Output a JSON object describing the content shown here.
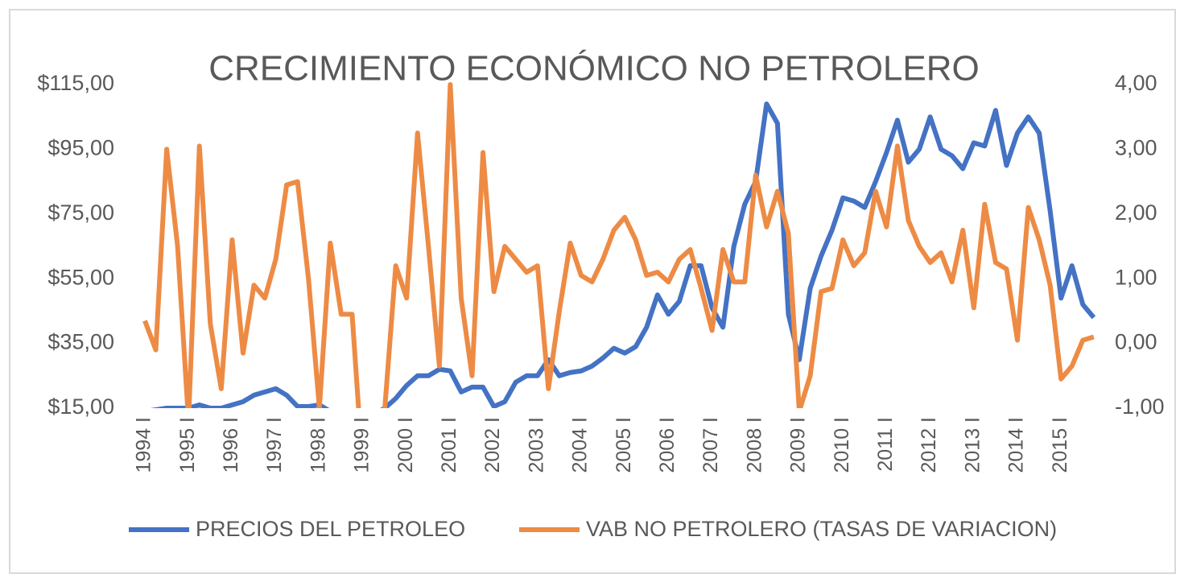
{
  "chart_data": {
    "type": "line",
    "title": "CRECIMIENTO ECONÓMICO NO PETROLERO",
    "categories": [
      "1994 I",
      null,
      null,
      null,
      "1995 I",
      null,
      null,
      null,
      "1996 I",
      null,
      null,
      null,
      "1997 I",
      null,
      null,
      null,
      "1998 I",
      null,
      null,
      null,
      "1999 I",
      null,
      null,
      null,
      "2000 I",
      null,
      null,
      null,
      "2001 I",
      null,
      null,
      null,
      "2002 I",
      null,
      null,
      null,
      "2003 I",
      null,
      null,
      null,
      "2004 I",
      null,
      null,
      null,
      "2005 I",
      null,
      null,
      null,
      "2006 I",
      null,
      null,
      null,
      "2007 I",
      null,
      null,
      null,
      "2008 I",
      null,
      null,
      null,
      "2009 I",
      null,
      null,
      null,
      "2010 I",
      null,
      null,
      null,
      "2011 I",
      null,
      null,
      null,
      "2012 I",
      null,
      null,
      null,
      "2013 I",
      null,
      null,
      null,
      "2014 I",
      null,
      null,
      null,
      "2015 I",
      null,
      null,
      null
    ],
    "series": [
      {
        "name": "PRECIOS DEL PETROLEO",
        "color": "#4472c4",
        "values": [
          14,
          14.5,
          15,
          15,
          15,
          16,
          15,
          15,
          16,
          17,
          19,
          20,
          21,
          19,
          15.5,
          15.5,
          16,
          14,
          12,
          11,
          11,
          13,
          15,
          18,
          22,
          25,
          25,
          27,
          26.5,
          20,
          21.5,
          21.5,
          15.5,
          17,
          23,
          25,
          25,
          30,
          25,
          26,
          26.5,
          28,
          30.5,
          33.5,
          32,
          34,
          40,
          50,
          44,
          48,
          59,
          59,
          46,
          40,
          65,
          78,
          85,
          109,
          103,
          44,
          30,
          52,
          62,
          70,
          80,
          79,
          77,
          85,
          94,
          104,
          91,
          95,
          105,
          95,
          93,
          89,
          97,
          96,
          107,
          90,
          100,
          105,
          100,
          76,
          49,
          59,
          47,
          43
        ]
      },
      {
        "name": "VAB NO PETROLERO (TASAS DE VARIACION)",
        "color": "#ed8b45",
        "axis": "y2",
        "values": [
          0.35,
          -0.1,
          3.0,
          1.5,
          -1.2,
          3.05,
          0.3,
          -0.7,
          1.6,
          -0.15,
          0.9,
          0.7,
          1.3,
          2.45,
          2.5,
          1.0,
          -1.0,
          1.55,
          0.45,
          0.45,
          -2,
          -2,
          -1.0,
          1.2,
          0.7,
          3.25,
          1.5,
          -0.35,
          4.0,
          0.7,
          -0.5,
          2.95,
          0.8,
          1.5,
          1.3,
          1.1,
          1.2,
          -0.7,
          0.5,
          1.55,
          1.05,
          0.95,
          1.3,
          1.75,
          1.95,
          1.6,
          1.05,
          1.1,
          0.95,
          1.3,
          1.45,
          0.85,
          0.2,
          1.45,
          0.95,
          0.95,
          2.6,
          1.8,
          2.35,
          1.7,
          -1.05,
          -0.5,
          0.8,
          0.85,
          1.6,
          1.2,
          1.4,
          2.35,
          1.8,
          3.05,
          1.9,
          1.5,
          1.25,
          1.4,
          0.95,
          1.75,
          0.55,
          2.15,
          1.25,
          1.15,
          0.05,
          2.1,
          1.6,
          0.9,
          -0.55,
          -0.35,
          0.05,
          0.1
        ]
      }
    ],
    "ylim": [
      15,
      115
    ],
    "yticks": [
      {
        "value": 15,
        "label": "$15,00"
      },
      {
        "value": 35,
        "label": "$35,00"
      },
      {
        "value": 55,
        "label": "$55,00"
      },
      {
        "value": 75,
        "label": "$75,00"
      },
      {
        "value": 95,
        "label": "$95,00"
      },
      {
        "value": 115,
        "label": "$115,00"
      }
    ],
    "y2lim": [
      -1,
      4
    ],
    "y2ticks": [
      {
        "value": -1,
        "label": "-1,00"
      },
      {
        "value": 0,
        "label": "0,00"
      },
      {
        "value": 1,
        "label": "1,00"
      },
      {
        "value": 2,
        "label": "2,00"
      },
      {
        "value": 3,
        "label": "3,00"
      },
      {
        "value": 4,
        "label": "4,00"
      }
    ],
    "legend": "bottom",
    "grid": false
  }
}
